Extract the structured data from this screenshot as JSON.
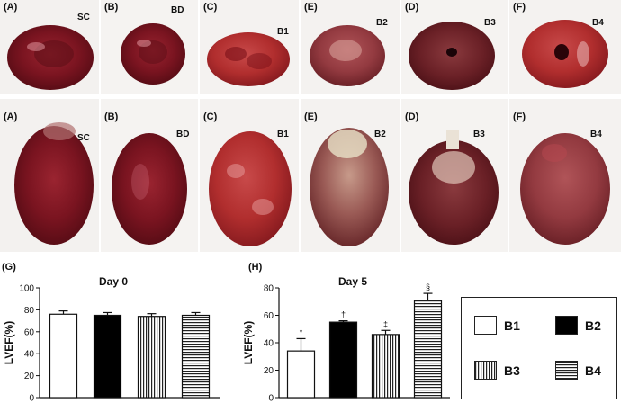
{
  "top_row": [
    {
      "panel": "(A)",
      "group": "SC"
    },
    {
      "panel": "(B)",
      "group": "BD"
    },
    {
      "panel": "(C)",
      "group": "B1"
    },
    {
      "panel": "(E)",
      "group": "B2"
    },
    {
      "panel": "(D)",
      "group": "B3"
    },
    {
      "panel": "(F)",
      "group": "B4"
    }
  ],
  "bottom_row": [
    {
      "panel": "(A)",
      "group": "SC"
    },
    {
      "panel": "(B)",
      "group": "BD"
    },
    {
      "panel": "(C)",
      "group": "B1"
    },
    {
      "panel": "(E)",
      "group": "B2"
    },
    {
      "panel": "(D)",
      "group": "B3"
    },
    {
      "panel": "(F)",
      "group": "B4"
    }
  ],
  "chart_data": [
    {
      "panel": "(G)",
      "type": "bar",
      "title": "Day 0",
      "ylabel": "LVEF(%)",
      "ylim": [
        0,
        100
      ],
      "yticks": [
        "0",
        "20",
        "40",
        "60",
        "80",
        "100"
      ],
      "categories": [
        "B1",
        "B2",
        "B3",
        "B4"
      ],
      "values": [
        76,
        75,
        74,
        75
      ],
      "errors": [
        3,
        2.5,
        2.5,
        2.5
      ],
      "annotations": [
        "",
        "",
        "",
        ""
      ]
    },
    {
      "panel": "(H)",
      "type": "bar",
      "title": "Day 5",
      "ylabel": "LVEF(%)",
      "ylim": [
        0,
        80
      ],
      "yticks": [
        "0",
        "20",
        "40",
        "60",
        "80"
      ],
      "categories": [
        "B1",
        "B2",
        "B3",
        "B4"
      ],
      "values": [
        34,
        55,
        46,
        71
      ],
      "errors": [
        9,
        1,
        3,
        5
      ],
      "annotations": [
        "*",
        "†",
        "‡",
        "§"
      ]
    }
  ],
  "legend": [
    {
      "label": "B1",
      "fill": "white"
    },
    {
      "label": "B2",
      "fill": "black"
    },
    {
      "label": "B3",
      "fill": "vertical-stripes"
    },
    {
      "label": "B4",
      "fill": "horizontal-stripes"
    }
  ]
}
